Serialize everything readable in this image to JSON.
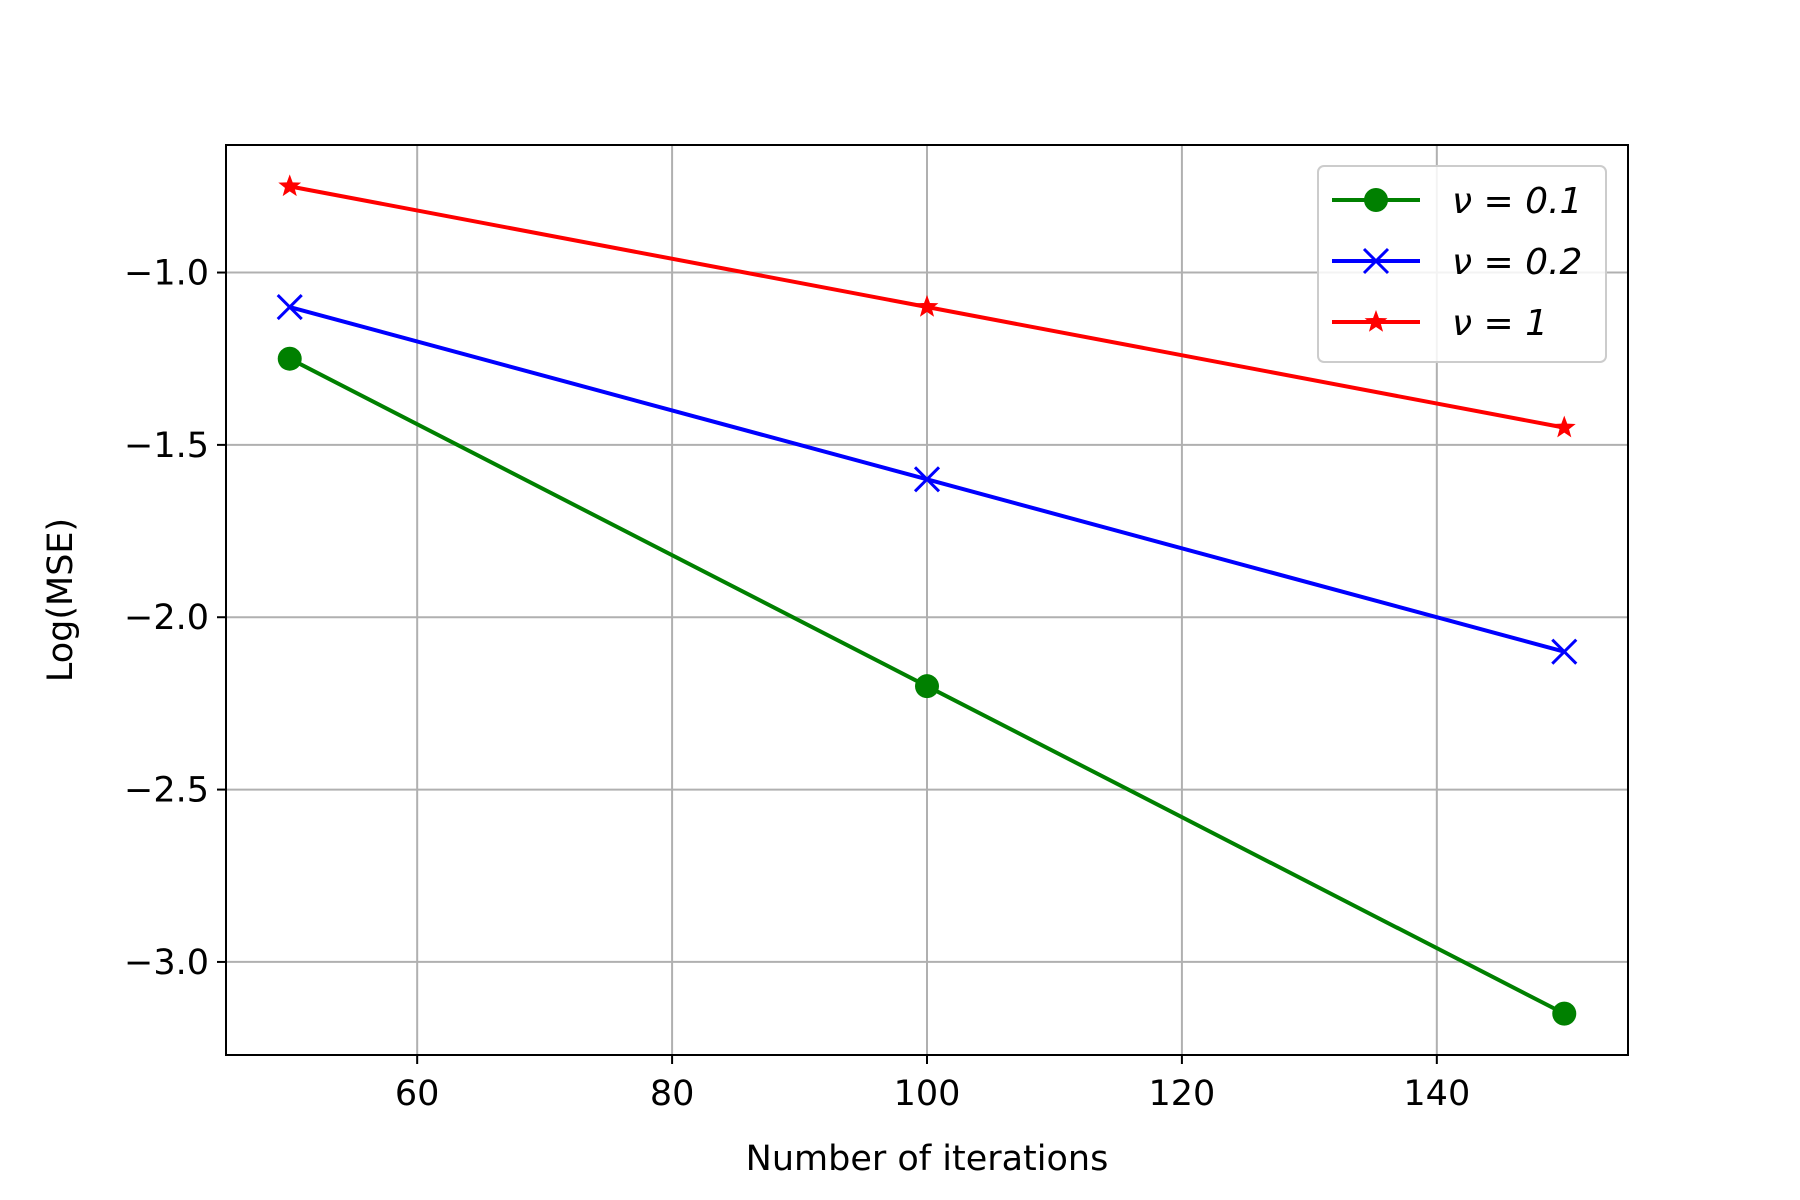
{
  "chart_data": {
    "type": "line",
    "title": "",
    "xlabel": "Number of iterations",
    "ylabel": "Log(MSE)",
    "xlim": [
      45,
      155
    ],
    "ylim": [
      -3.27,
      -0.63
    ],
    "xticks": [
      60,
      80,
      100,
      120,
      140
    ],
    "xtick_labels": [
      "60",
      "80",
      "100",
      "120",
      "140"
    ],
    "yticks": [
      -1.0,
      -1.5,
      -2.0,
      -2.5,
      -3.0
    ],
    "ytick_labels": [
      "−1.0",
      "−1.5",
      "−2.0",
      "−2.5",
      "−3.0"
    ],
    "grid": true,
    "legend_position": "top-right",
    "x": [
      50,
      100,
      150
    ],
    "series": [
      {
        "name": "ν = 0.1",
        "values": [
          -1.25,
          -2.2,
          -3.15
        ],
        "color": "#008000",
        "marker": "circle"
      },
      {
        "name": "ν = 0.2",
        "values": [
          -1.1,
          -1.6,
          -2.1
        ],
        "color": "#0000ff",
        "marker": "x"
      },
      {
        "name": "ν = 1",
        "values": [
          -0.75,
          -1.1,
          -1.45
        ],
        "color": "#ff0000",
        "marker": "star"
      }
    ]
  }
}
